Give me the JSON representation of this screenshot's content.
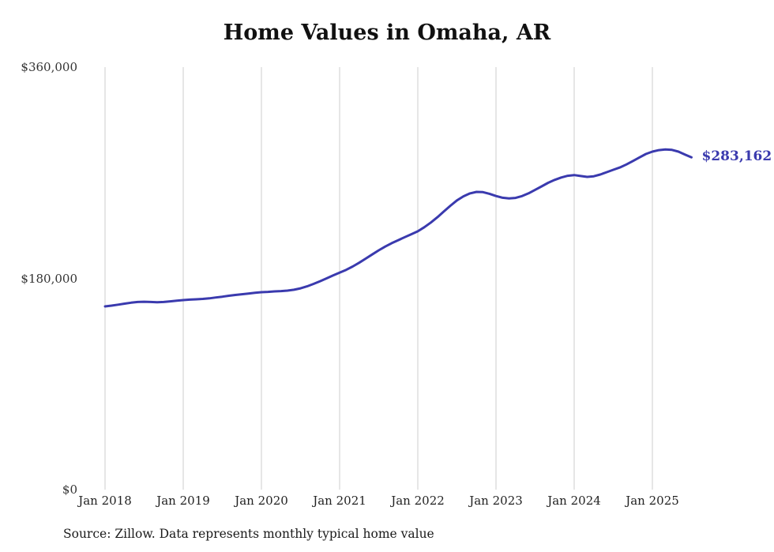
{
  "chart_data": {
    "type": "line",
    "title": "Home Values in Omaha, AR",
    "xlabel": "",
    "ylabel": "",
    "ylim": [
      0,
      360000
    ],
    "grid": "vertical-gridlines-at-each-january",
    "legend": "none",
    "annotation": {
      "label": "$283,162",
      "value": 283162
    },
    "source_note": "Source: Zillow. Data represents monthly typical home value",
    "yticks": [
      {
        "value": 0,
        "label": "$0"
      },
      {
        "value": 180000,
        "label": "$180,000"
      },
      {
        "value": 360000,
        "label": "$360,000"
      }
    ],
    "xtick_labels": [
      "Jan 2018",
      "Jan 2019",
      "Jan 2020",
      "Jan 2021",
      "Jan 2022",
      "Jan 2023",
      "Jan 2024",
      "Jan 2025"
    ],
    "months": [
      "2018-01",
      "2018-02",
      "2018-03",
      "2018-04",
      "2018-05",
      "2018-06",
      "2018-07",
      "2018-08",
      "2018-09",
      "2018-10",
      "2018-11",
      "2018-12",
      "2019-01",
      "2019-02",
      "2019-03",
      "2019-04",
      "2019-05",
      "2019-06",
      "2019-07",
      "2019-08",
      "2019-09",
      "2019-10",
      "2019-11",
      "2019-12",
      "2020-01",
      "2020-02",
      "2020-03",
      "2020-04",
      "2020-05",
      "2020-06",
      "2020-07",
      "2020-08",
      "2020-09",
      "2020-10",
      "2020-11",
      "2020-12",
      "2021-01",
      "2021-02",
      "2021-03",
      "2021-04",
      "2021-05",
      "2021-06",
      "2021-07",
      "2021-08",
      "2021-09",
      "2021-10",
      "2021-11",
      "2021-12",
      "2022-01",
      "2022-02",
      "2022-03",
      "2022-04",
      "2022-05",
      "2022-06",
      "2022-07",
      "2022-08",
      "2022-09",
      "2022-10",
      "2022-11",
      "2022-12",
      "2023-01",
      "2023-02",
      "2023-03",
      "2023-04",
      "2023-05",
      "2023-06",
      "2023-07",
      "2023-08",
      "2023-09",
      "2023-10",
      "2023-11",
      "2023-12",
      "2024-01",
      "2024-02",
      "2024-03",
      "2024-04",
      "2024-05",
      "2024-06",
      "2024-07",
      "2024-08",
      "2024-09",
      "2024-10",
      "2024-11",
      "2024-12",
      "2025-01",
      "2025-02",
      "2025-03",
      "2025-04",
      "2025-05",
      "2025-06",
      "2025-07"
    ],
    "values": [
      156100,
      156800,
      157600,
      158500,
      159300,
      159900,
      160100,
      159900,
      159700,
      159900,
      160400,
      161000,
      161500,
      161900,
      162200,
      162500,
      163000,
      163700,
      164400,
      165200,
      165900,
      166500,
      167100,
      167700,
      168200,
      168500,
      168900,
      169200,
      169600,
      170300,
      171500,
      173200,
      175300,
      177600,
      180000,
      182500,
      184900,
      187300,
      190100,
      193300,
      196800,
      200400,
      203900,
      207100,
      210000,
      212600,
      215100,
      217600,
      220100,
      223600,
      227600,
      232100,
      237000,
      241900,
      246400,
      249900,
      252400,
      253700,
      253500,
      252100,
      250200,
      248700,
      248100,
      248600,
      250100,
      252500,
      255400,
      258400,
      261400,
      263900,
      265900,
      267400,
      268000,
      267200,
      266500,
      267000,
      268500,
      270500,
      272500,
      274500,
      277000,
      280000,
      283000,
      286000,
      288000,
      289300,
      289800,
      289500,
      288000,
      285500,
      283162
    ],
    "colors": {
      "line": "#3a3aae",
      "annotation": "#3a3aae",
      "grid": "#cccccc",
      "title": "#111111",
      "tick": "#333333",
      "source": "#1a1a1a",
      "background": "#ffffff"
    }
  }
}
